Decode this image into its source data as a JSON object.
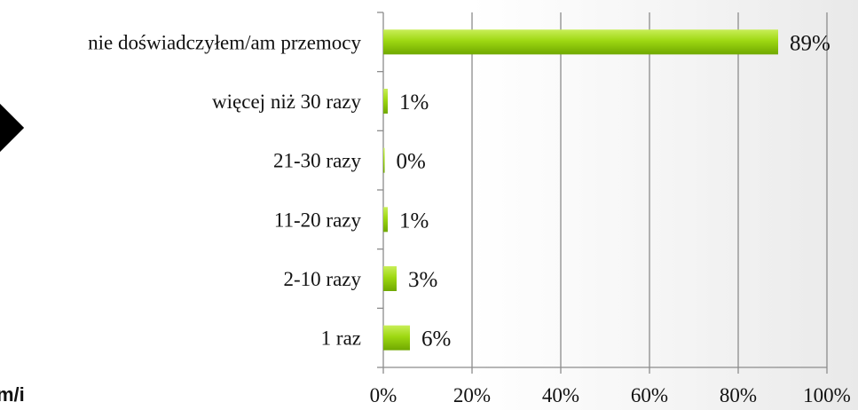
{
  "chart_data": {
    "type": "bar",
    "orientation": "horizontal",
    "categories": [
      "nie doświadczyłem/am przemocy",
      "więcej niż 30 razy",
      "21-30 razy",
      "11-20 razy",
      "2-10 razy",
      "1 raz"
    ],
    "values": [
      89,
      1,
      0,
      1,
      3,
      6
    ],
    "value_labels": [
      "89%",
      "1%",
      "0%",
      "1%",
      "3%",
      "6%"
    ],
    "xlim": [
      0,
      100
    ],
    "x_ticks": [
      "0%",
      "20%",
      "40%",
      "60%",
      "80%",
      "100%"
    ],
    "grid": true,
    "bar_color": "#8cc90a",
    "title": "",
    "xlabel": "",
    "ylabel": ""
  },
  "side_text": "m/i"
}
